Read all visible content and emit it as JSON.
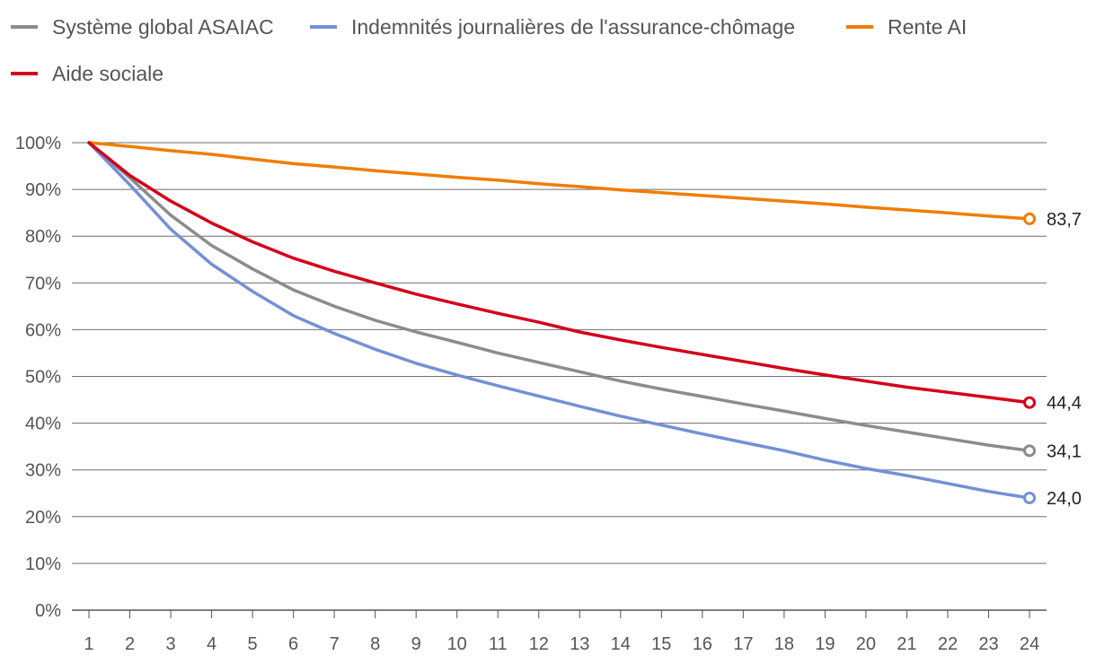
{
  "chart_data": {
    "type": "line",
    "x": [
      1,
      2,
      3,
      4,
      5,
      6,
      7,
      8,
      9,
      10,
      11,
      12,
      13,
      14,
      15,
      16,
      17,
      18,
      19,
      20,
      21,
      22,
      23,
      24
    ],
    "ylim": [
      0,
      100
    ],
    "yticks": [
      "0%",
      "10%",
      "20%",
      "30%",
      "40%",
      "50%",
      "60%",
      "70%",
      "80%",
      "90%",
      "100%"
    ],
    "xticks": [
      "1",
      "2",
      "3",
      "4",
      "5",
      "6",
      "7",
      "8",
      "9",
      "10",
      "11",
      "12",
      "13",
      "14",
      "15",
      "16",
      "17",
      "18",
      "19",
      "20",
      "21",
      "22",
      "23",
      "24"
    ],
    "grid": true,
    "legend_position": "top-left",
    "series": [
      {
        "name": "Système global ASAIAC",
        "color": "#8c8c8c",
        "values": [
          100,
          92.5,
          84.5,
          78.0,
          73.0,
          68.5,
          65.0,
          62.0,
          59.5,
          57.3,
          55.0,
          53.0,
          51.0,
          49.0,
          47.3,
          45.7,
          44.1,
          42.6,
          41.0,
          39.5,
          38.1,
          36.7,
          35.3,
          34.1
        ],
        "end_label": "34,1"
      },
      {
        "name": "Indemnités journalières de l'assurance-chômage",
        "color": "#7390d6",
        "values": [
          100,
          91.0,
          81.5,
          74.0,
          68.2,
          63.0,
          59.2,
          55.8,
          52.8,
          50.3,
          48.0,
          45.8,
          43.6,
          41.5,
          39.6,
          37.7,
          35.9,
          34.1,
          32.1,
          30.3,
          28.8,
          27.1,
          25.4,
          24.0
        ],
        "end_label": "24,0"
      },
      {
        "name": "Rente AI",
        "color": "#f07d00",
        "values": [
          100,
          99.2,
          98.3,
          97.5,
          96.5,
          95.5,
          94.8,
          94.0,
          93.3,
          92.6,
          92.0,
          91.2,
          90.6,
          89.9,
          89.3,
          88.7,
          88.1,
          87.5,
          86.9,
          86.2,
          85.6,
          85.0,
          84.3,
          83.7
        ],
        "end_label": "83,7"
      },
      {
        "name": "Aide sociale",
        "color": "#d4001a",
        "values": [
          100,
          93.0,
          87.5,
          82.8,
          78.8,
          75.3,
          72.5,
          70.0,
          67.6,
          65.5,
          63.5,
          61.6,
          59.5,
          57.8,
          56.2,
          54.7,
          53.2,
          51.7,
          50.3,
          49.0,
          47.7,
          46.6,
          45.5,
          44.4
        ],
        "end_label": "44,4"
      }
    ]
  }
}
